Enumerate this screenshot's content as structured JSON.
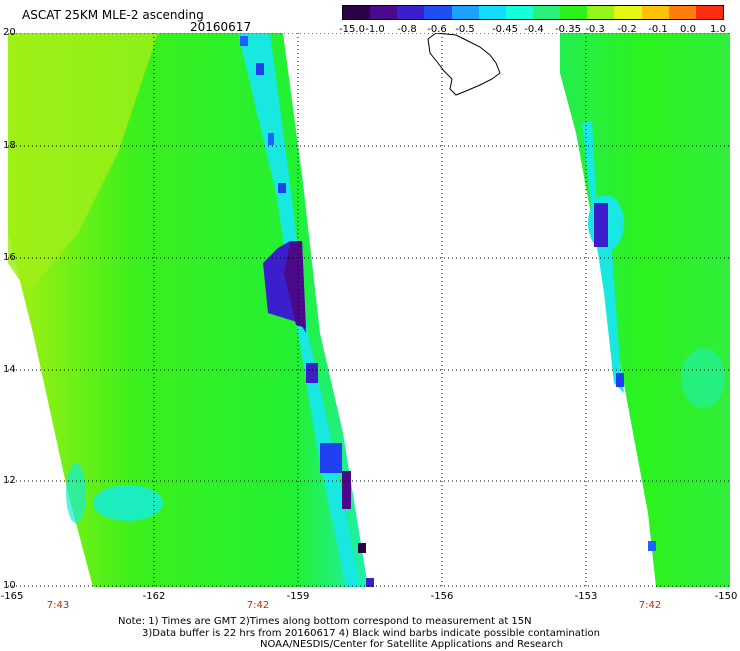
{
  "title": "ASCAT 25KM MLE-2 ascending",
  "date": "20160617",
  "colorbar": {
    "labels": [
      "-15.0",
      "-1.0",
      "-0.8",
      "-0.6",
      "-0.5",
      "-0.45",
      "-0.4",
      "-0.35",
      "-0.3",
      "-0.2",
      "-0.1",
      "0.0",
      "1.0"
    ],
    "colors": [
      "#2a0046",
      "#4a0a8a",
      "#3b1fcc",
      "#1f4ff0",
      "#1ea0ff",
      "#14dcff",
      "#14ffd8",
      "#28f07a",
      "#2cf21c",
      "#96f51a",
      "#e2f712",
      "#ffc20a",
      "#ff7d0a",
      "#ff2c12"
    ]
  },
  "latitude_labels": [
    "20",
    "18",
    "16",
    "14",
    "12",
    "10"
  ],
  "longitude_labels": [
    "-165",
    "-162",
    "-159",
    "-156",
    "-153",
    "-150"
  ],
  "time_labels": [
    "7:43",
    "7:42",
    "7:42"
  ],
  "notes": [
    "Note: 1) Times are GMT 2)Times along bottom correspond to measurement at 15N",
    "3)Data buffer is 22 hrs from 20160617 4) Black wind barbs indicate possible contamination",
    "NOAA/NESDIS/Center for Satellite Applications and Research"
  ]
}
